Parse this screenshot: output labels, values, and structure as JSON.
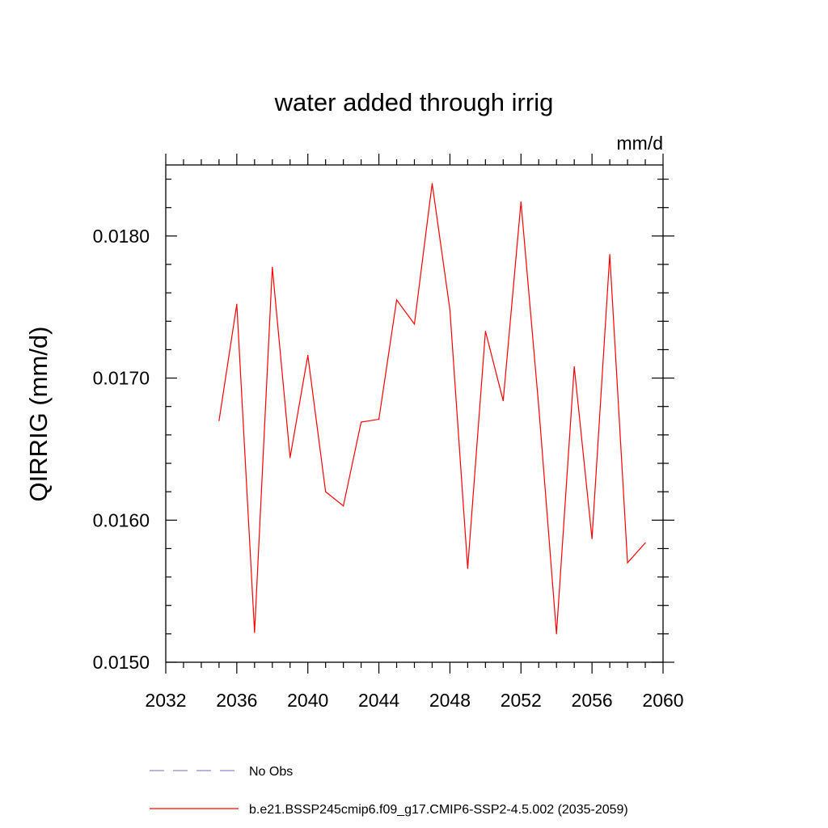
{
  "chart_data": {
    "type": "line",
    "title": "water added through irrig",
    "units_label": "mm/d",
    "ylabel": "QIRRIG  (mm/d)",
    "xlabel": "",
    "xlim": [
      2032,
      2060
    ],
    "ylim": [
      0.015,
      0.0185
    ],
    "x_ticks": [
      2032,
      2036,
      2040,
      2044,
      2048,
      2052,
      2056,
      2060
    ],
    "x_tick_labels": [
      "2032",
      "2036",
      "2040",
      "2044",
      "2048",
      "2052",
      "2056",
      "2060"
    ],
    "y_ticks": [
      0.015,
      0.016,
      0.017,
      0.018
    ],
    "y_tick_labels": [
      "0.0150",
      "0.0160",
      "0.0170",
      "0.0180"
    ],
    "grid": false,
    "legend_position": "bottom",
    "series": [
      {
        "name": "b.e21.BSSP245cmip6.f09_g17.CMIP6-SSP2-4.5.002 (2035-2059)",
        "color": "#ff0000",
        "style": "solid",
        "x": [
          2035,
          2036,
          2037,
          2038,
          2039,
          2040,
          2041,
          2042,
          2043,
          2044,
          2045,
          2046,
          2047,
          2048,
          2049,
          2050,
          2051,
          2052,
          2053,
          2054,
          2055,
          2056,
          2057,
          2058,
          2059
        ],
        "y": [
          0.0167,
          0.01752,
          0.01521,
          0.01778,
          0.01644,
          0.01716,
          0.0162,
          0.0161,
          0.01669,
          0.01671,
          0.01755,
          0.01738,
          0.01837,
          0.01748,
          0.01566,
          0.01733,
          0.01684,
          0.01824,
          0.0168,
          0.0152,
          0.01708,
          0.01587,
          0.01787,
          0.0157,
          0.01584
        ]
      }
    ],
    "legend_entries": [
      {
        "label": "No Obs",
        "color": "#8a8ad0",
        "style": "dashed"
      },
      {
        "label": "b.e21.BSSP245cmip6.f09_g17.CMIP6-SSP2-4.5.002 (2035-2059)",
        "color": "#ff0000",
        "style": "solid"
      }
    ]
  }
}
